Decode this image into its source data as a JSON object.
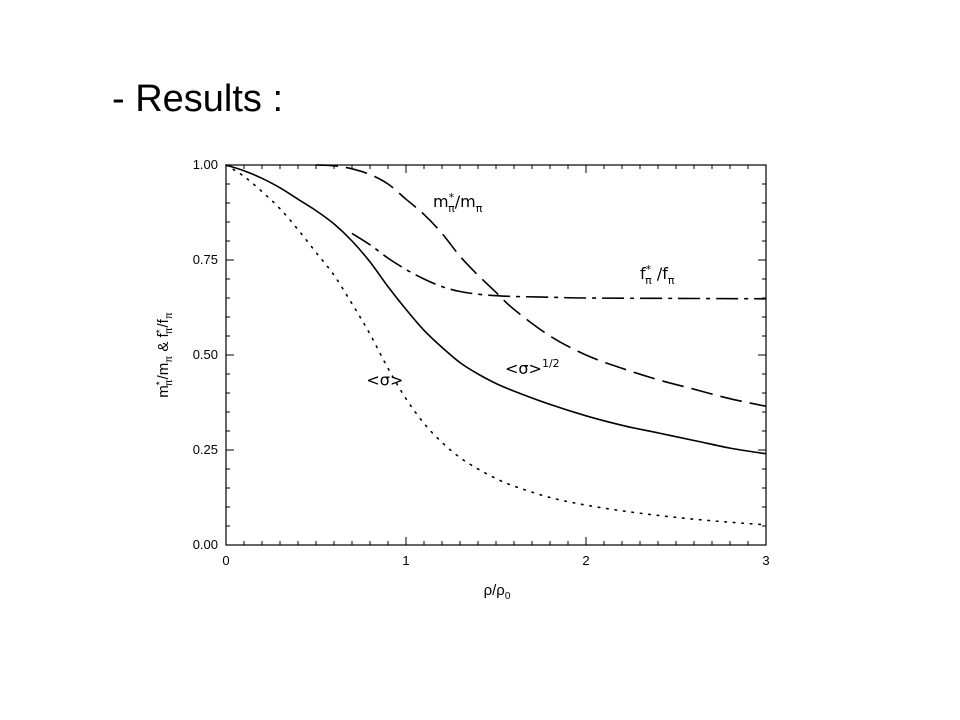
{
  "slide": {
    "title": "- Results :"
  },
  "chart_data": {
    "type": "line",
    "xlabel": "ρ/ρ₀",
    "ylabel": "m*π/mπ & f*π/fπ",
    "xlim": [
      0,
      3
    ],
    "ylim": [
      0,
      1
    ],
    "x_ticks": [
      0,
      1,
      2,
      3
    ],
    "x_tick_labels": [
      "0",
      "1",
      "2",
      "3"
    ],
    "y_ticks": [
      0,
      0.25,
      0.5,
      0.75,
      1.0
    ],
    "y_tick_labels": [
      "0.00",
      "0.25",
      "0.50",
      "0.75",
      "1.00"
    ],
    "grid": false,
    "series": [
      {
        "name": "m*π/mπ",
        "style": "dashed",
        "x": [
          0.5,
          0.6,
          0.7,
          0.8,
          0.9,
          1.0,
          1.1,
          1.2,
          1.3,
          1.4,
          1.5,
          1.6,
          1.8,
          2.0,
          2.2,
          2.4,
          2.6,
          2.8,
          3.0
        ],
        "y": [
          1.0,
          0.998,
          0.99,
          0.975,
          0.95,
          0.91,
          0.87,
          0.82,
          0.76,
          0.71,
          0.665,
          0.62,
          0.55,
          0.5,
          0.465,
          0.435,
          0.41,
          0.385,
          0.365
        ]
      },
      {
        "name": "f*π /fπ",
        "style": "dash-dot",
        "x": [
          0.7,
          0.8,
          0.9,
          1.0,
          1.1,
          1.2,
          1.3,
          1.4,
          1.5,
          1.6,
          1.8,
          2.0,
          2.5,
          3.0
        ],
        "y": [
          0.82,
          0.79,
          0.755,
          0.725,
          0.7,
          0.68,
          0.667,
          0.66,
          0.656,
          0.654,
          0.652,
          0.65,
          0.649,
          0.648
        ]
      },
      {
        "name": "<σ>1/2",
        "style": "solid",
        "x": [
          0,
          0.1,
          0.2,
          0.3,
          0.4,
          0.5,
          0.6,
          0.7,
          0.8,
          0.9,
          1.0,
          1.1,
          1.2,
          1.3,
          1.4,
          1.5,
          1.6,
          1.8,
          2.0,
          2.2,
          2.4,
          2.6,
          2.8,
          3.0
        ],
        "y": [
          1.0,
          0.985,
          0.965,
          0.94,
          0.91,
          0.88,
          0.845,
          0.8,
          0.745,
          0.68,
          0.62,
          0.565,
          0.52,
          0.48,
          0.45,
          0.425,
          0.405,
          0.37,
          0.34,
          0.315,
          0.295,
          0.275,
          0.255,
          0.24
        ]
      },
      {
        "name": "<σ>",
        "style": "dotted",
        "x": [
          0,
          0.1,
          0.2,
          0.3,
          0.4,
          0.5,
          0.6,
          0.7,
          0.8,
          0.9,
          1.0,
          1.1,
          1.2,
          1.3,
          1.4,
          1.5,
          1.6,
          1.8,
          2.0,
          2.2,
          2.4,
          2.6,
          2.8,
          3.0
        ],
        "y": [
          1.0,
          0.97,
          0.93,
          0.885,
          0.83,
          0.77,
          0.71,
          0.635,
          0.555,
          0.465,
          0.385,
          0.32,
          0.27,
          0.23,
          0.2,
          0.175,
          0.155,
          0.125,
          0.105,
          0.09,
          0.078,
          0.068,
          0.06,
          0.053
        ]
      }
    ],
    "annotations": [
      {
        "text": "m*π/mπ",
        "x": 1.15,
        "y": 0.89
      },
      {
        "text": "f*π /fπ",
        "x": 2.3,
        "y": 0.7
      },
      {
        "text": "<σ>1/2",
        "x": 1.55,
        "y": 0.45
      },
      {
        "text": "<σ>",
        "x": 0.78,
        "y": 0.42
      }
    ]
  }
}
